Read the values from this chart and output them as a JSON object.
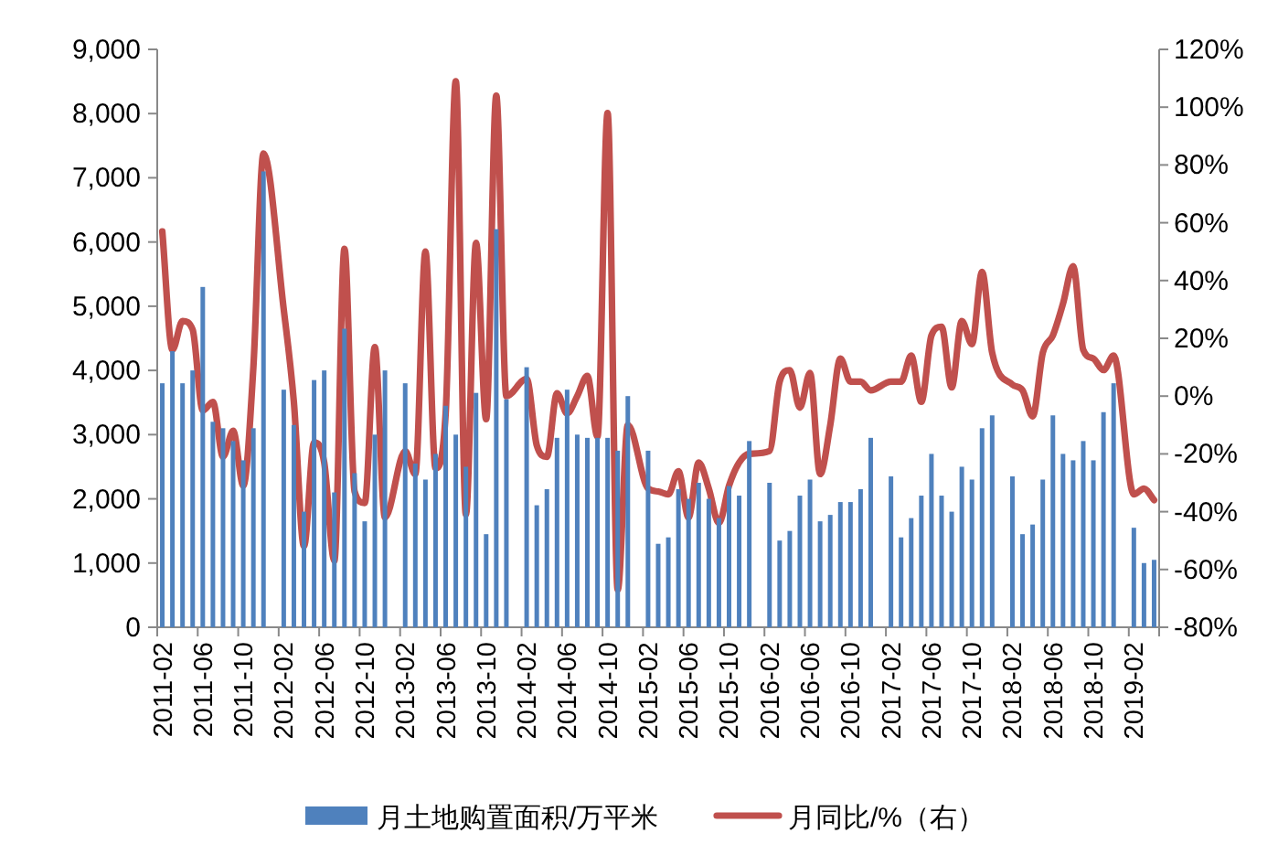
{
  "chart_data": {
    "type": "bar",
    "legend": "bottom",
    "categories": [
      "2011-02",
      null,
      null,
      null,
      "2011-06",
      null,
      null,
      null,
      "2011-10",
      null,
      null,
      null,
      "2012-02",
      null,
      null,
      null,
      "2012-06",
      null,
      null,
      null,
      "2012-10",
      null,
      null,
      null,
      "2013-02",
      null,
      null,
      null,
      "2013-06",
      null,
      null,
      null,
      "2013-10",
      null,
      null,
      null,
      "2014-02",
      null,
      null,
      null,
      "2014-06",
      null,
      null,
      null,
      "2014-10",
      null,
      null,
      null,
      "2015-02",
      null,
      null,
      null,
      "2015-06",
      null,
      null,
      null,
      "2015-10",
      null,
      null,
      null,
      "2016-02",
      null,
      null,
      null,
      "2016-06",
      null,
      null,
      null,
      "2016-10",
      null,
      null,
      null,
      "2017-02",
      null,
      null,
      null,
      "2017-06",
      null,
      null,
      null,
      "2017-10",
      null,
      null,
      null,
      "2018-02",
      null,
      null,
      null,
      "2018-06",
      null,
      null,
      null,
      "2018-10",
      null,
      null,
      null,
      "2019-02",
      null,
      null
    ],
    "ylim": [
      0,
      9000
    ],
    "yticks": [
      0,
      {
        "value": 1000,
        "label": "1,000"
      },
      {
        "value": 2000,
        "label": "2,000"
      },
      {
        "value": 3000,
        "label": "3,000"
      },
      {
        "value": 4000,
        "label": "4,000"
      },
      {
        "value": 5000,
        "label": "5,000"
      },
      {
        "value": 6000,
        "label": "6,000"
      },
      {
        "value": 7000,
        "label": "7,000"
      },
      {
        "value": 8000,
        "label": "8,000"
      },
      {
        "value": 9000,
        "label": "9,000"
      }
    ],
    "y2lim": [
      -80,
      120
    ],
    "y2ticks": [
      {
        "value": -80,
        "label": "-80%"
      },
      {
        "value": -60,
        "label": "-60%"
      },
      {
        "value": -40,
        "label": "-40%"
      },
      {
        "value": -20,
        "label": "-20%"
      },
      {
        "value": 0,
        "label": "0%"
      },
      {
        "value": 20,
        "label": "20%"
      },
      {
        "value": 40,
        "label": "40%"
      },
      {
        "value": 60,
        "label": "60%"
      },
      {
        "value": 80,
        "label": "80%"
      },
      {
        "value": 100,
        "label": "100%"
      },
      {
        "value": 120,
        "label": "120%"
      }
    ],
    "series": [
      {
        "name": "月土地购置面积/万平米",
        "color": "#4f81bd",
        "values": [
          3800,
          4300,
          3800,
          4000,
          5300,
          3200,
          3100,
          2900,
          2600,
          3100,
          7100,
          null,
          3700,
          3150,
          1800,
          3850,
          4000,
          2100,
          4650,
          2400,
          1650,
          3000,
          4000,
          null,
          3800,
          2550,
          2300,
          2700,
          3450,
          3000,
          2500,
          3650,
          1450,
          6200,
          3550,
          null,
          4050,
          1900,
          2150,
          2950,
          3700,
          3000,
          2950,
          2950,
          2950,
          2750,
          3600,
          null,
          2750,
          1300,
          1400,
          2150,
          2000,
          2250,
          2000,
          1700,
          2200,
          2050,
          2900,
          null,
          2250,
          1350,
          1500,
          2050,
          2300,
          1650,
          1750,
          1950,
          1950,
          2150,
          2950,
          null,
          2350,
          1400,
          1700,
          2050,
          2700,
          2050,
          1800,
          2500,
          2300,
          3100,
          3300,
          null,
          2350,
          1450,
          1600,
          2300,
          3300,
          2700,
          2600,
          2900,
          2600,
          3350,
          3800,
          null,
          1550,
          1000,
          1050
        ]
      },
      {
        "name": "月同比/%（右）",
        "type": "line",
        "axis": "y2",
        "color": "#c0504d",
        "values": [
          57,
          16,
          26,
          23,
          -5,
          -2,
          -21,
          -12,
          -31,
          10,
          84,
          null,
          30,
          -2,
          -52,
          -16,
          -23,
          -57,
          51,
          -33,
          -37,
          17,
          -42,
          null,
          -19,
          -27,
          50,
          -25,
          -6,
          109,
          -41,
          53,
          -8,
          104,
          0,
          null,
          6,
          -17,
          -21,
          1,
          -6,
          0,
          7,
          -14,
          98,
          -67,
          -10,
          null,
          -32,
          -33,
          -34,
          -26,
          -42,
          -23,
          -32,
          -44,
          -31,
          -23,
          -20,
          null,
          -19,
          5,
          9,
          -4,
          8,
          -27,
          -10,
          13,
          5,
          5,
          2,
          null,
          5,
          5,
          14,
          -2,
          21,
          24,
          3,
          26,
          18,
          43,
          15,
          null,
          4,
          2,
          -7,
          15,
          21,
          32,
          45,
          16,
          13,
          9,
          14,
          null,
          -34,
          -32,
          -36
        ]
      }
    ]
  }
}
